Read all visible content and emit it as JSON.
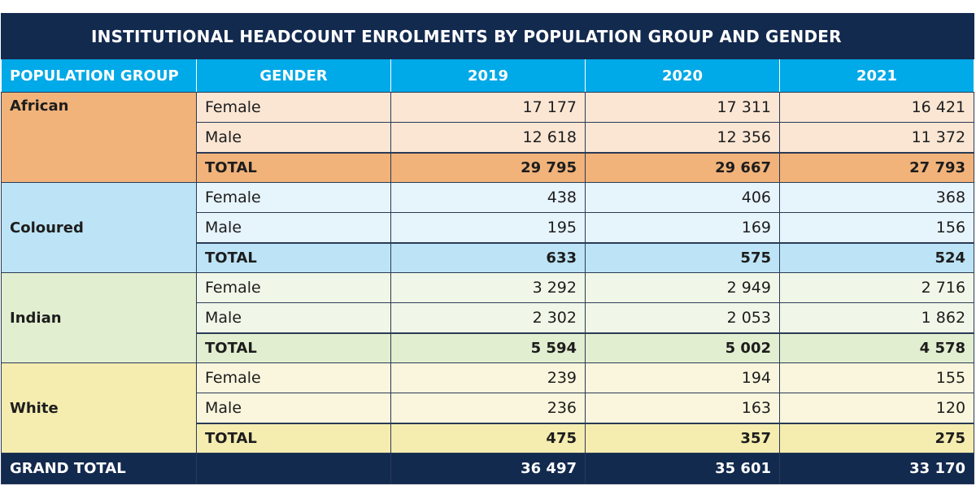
{
  "title": "INSTITUTIONAL HEADCOUNT ENROLMENTS BY POPULATION GROUP AND GENDER",
  "headers": {
    "population_group": "POPULATION GROUP",
    "gender": "GENDER",
    "y2019": "2019",
    "y2020": "2020",
    "y2021": "2021"
  },
  "colors": {
    "title_bg": "#132a4f",
    "header_bg": "#00a9e8",
    "african": "#f1b37a",
    "coloured": "#bde4f6",
    "indian": "#e2eed0",
    "white": "#f5ecb0"
  },
  "groups": [
    {
      "name": "African",
      "rows": [
        {
          "gender": "Female",
          "y2019": "17 177",
          "y2020": "17 311",
          "y2021": "16 421"
        },
        {
          "gender": "Male",
          "y2019": "12 618",
          "y2020": "12 356",
          "y2021": "11 372"
        },
        {
          "gender": "TOTAL",
          "y2019": "29 795",
          "y2020": "29 667",
          "y2021": "27 793"
        }
      ]
    },
    {
      "name": "Coloured",
      "rows": [
        {
          "gender": "Female",
          "y2019": "438",
          "y2020": "406",
          "y2021": "368"
        },
        {
          "gender": "Male",
          "y2019": "195",
          "y2020": "169",
          "y2021": "156"
        },
        {
          "gender": "TOTAL",
          "y2019": "633",
          "y2020": "575",
          "y2021": "524"
        }
      ]
    },
    {
      "name": "Indian",
      "rows": [
        {
          "gender": "Female",
          "y2019": "3 292",
          "y2020": "2 949",
          "y2021": "2 716"
        },
        {
          "gender": "Male",
          "y2019": "2 302",
          "y2020": "2 053",
          "y2021": "1 862"
        },
        {
          "gender": "TOTAL",
          "y2019": "5 594",
          "y2020": "5 002",
          "y2021": "4 578"
        }
      ]
    },
    {
      "name": "White",
      "rows": [
        {
          "gender": "Female",
          "y2019": "239",
          "y2020": "194",
          "y2021": "155"
        },
        {
          "gender": "Male",
          "y2019": "236",
          "y2020": "163",
          "y2021": "120"
        },
        {
          "gender": "TOTAL",
          "y2019": "475",
          "y2020": "357",
          "y2021": "275"
        }
      ]
    }
  ],
  "grand_total": {
    "label": "GRAND TOTAL",
    "y2019": "36 497",
    "y2020": "35 601",
    "y2021": "33 170"
  }
}
